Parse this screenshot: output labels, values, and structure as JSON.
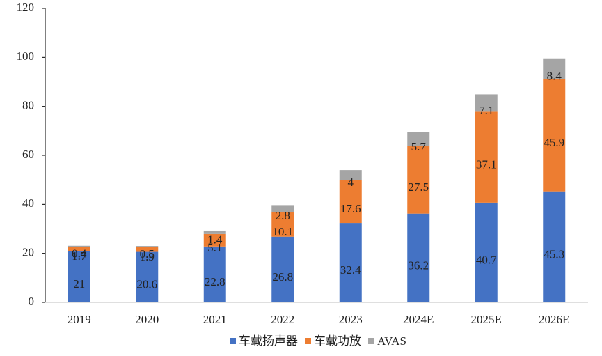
{
  "chart_data": {
    "type": "stacked-bar",
    "categories": [
      "2019",
      "2020",
      "2021",
      "2022",
      "2023",
      "2024E",
      "2025E",
      "2026E"
    ],
    "series": [
      {
        "name": "车载扬声器",
        "color": "#4472c4",
        "values": [
          21,
          20.6,
          22.8,
          26.8,
          32.4,
          36.2,
          40.7,
          45.3
        ]
      },
      {
        "name": "车载功放",
        "color": "#ed7d31",
        "values": [
          1.7,
          1.9,
          5.1,
          10.1,
          17.6,
          27.5,
          37.1,
          45.9
        ]
      },
      {
        "name": "AVAS",
        "color": "#a5a5a5",
        "values": [
          0.4,
          0.5,
          1.4,
          2.8,
          4,
          5.7,
          7.1,
          8.4
        ]
      }
    ],
    "ylim": [
      0,
      120
    ],
    "yticks": [
      0,
      20,
      40,
      60,
      80,
      100,
      120
    ],
    "legend": "bottom"
  }
}
